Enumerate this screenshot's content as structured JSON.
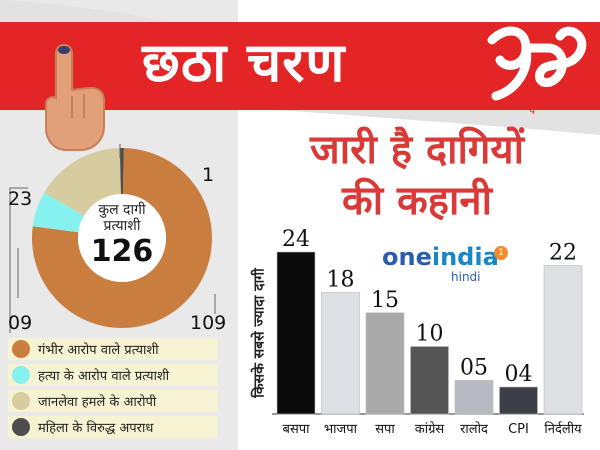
{
  "header": {
    "title": "छठा चरण",
    "phase_numeral": "६"
  },
  "headline": {
    "line1": "जारी है दागियों",
    "line2": "की कहानी"
  },
  "donut": {
    "center_line1": "कुल दागी",
    "center_line2": "प्रत्याशी",
    "total": "126",
    "labels": [
      "109",
      "23",
      "1",
      "09"
    ],
    "slices": [
      {
        "value": 109,
        "color": "#c97d3f"
      },
      {
        "value": 9,
        "color": "#86f1ee"
      },
      {
        "value": 23,
        "color": "#d7cba0"
      },
      {
        "value": 1,
        "color": "#4d4d4d"
      }
    ]
  },
  "legend": [
    {
      "label": "गंभीर आरोप वाले प्रत्याशी",
      "color": "#c97d3f"
    },
    {
      "label": "हत्या के आरोप वाले प्रत्याशी",
      "color": "#86f1ee"
    },
    {
      "label": "जानलेवा हमले के आरोपी",
      "color": "#d7cba0"
    },
    {
      "label": "महिला के विरुद्ध अपराध",
      "color": "#4d4d4d"
    }
  ],
  "brand": {
    "name_one": "one",
    "name_india": "india",
    "sub": "hindi",
    "badge": "1"
  },
  "chart_data": {
    "type": "bar",
    "ylabel": "किसके सबसे ज्यादा दागी",
    "categories": [
      "बसपा",
      "भाजपा",
      "सपा",
      "कांग्रेस",
      "रालोद",
      "CPI",
      "निर्दलीय"
    ],
    "values": [
      24,
      18,
      15,
      10,
      5,
      4,
      22
    ],
    "value_labels": [
      "24",
      "18",
      "15",
      "10",
      "05",
      "04",
      "22"
    ],
    "colors": [
      "#0a0a0a",
      "#dcdfe4",
      "#a9a9a9",
      "#555555",
      "#b7bac0",
      "#3c3f45",
      "#dedfe3"
    ],
    "ylim": [
      0,
      24
    ]
  }
}
